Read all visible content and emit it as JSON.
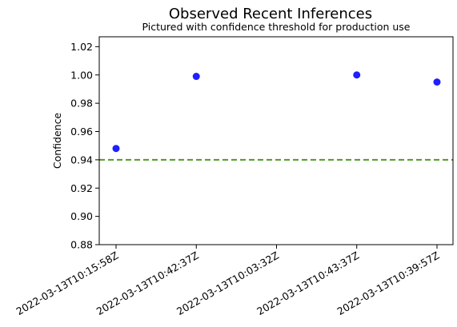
{
  "chart_data": {
    "type": "scatter",
    "title": "Observed Recent Inferences",
    "subtitle": "Pictured with confidence threshold for production use",
    "xlabel": "",
    "ylabel": "Confidence",
    "categories": [
      "2022-03-13T10:15:58Z",
      "2022-03-13T10:42:37Z",
      "2022-03-13T10:03:32Z",
      "2022-03-13T10:43:37Z",
      "2022-03-13T10:39:57Z"
    ],
    "series": [
      {
        "values": [
          0.948,
          0.999,
          null,
          1.0,
          0.995
        ],
        "color": "#1f1fff"
      }
    ],
    "threshold": {
      "value": 0.94,
      "color": "#4f9a2a",
      "style": "dashed"
    },
    "ylim": [
      0.88,
      1.027
    ],
    "yticks": [
      0.88,
      0.9,
      0.92,
      0.94,
      0.96,
      0.98,
      1.0,
      1.02
    ],
    "ytick_labels": [
      "0.88",
      "0.90",
      "0.92",
      "0.94",
      "0.96",
      "0.98",
      "1.00",
      "1.02"
    ],
    "grid": false,
    "legend": "none"
  }
}
